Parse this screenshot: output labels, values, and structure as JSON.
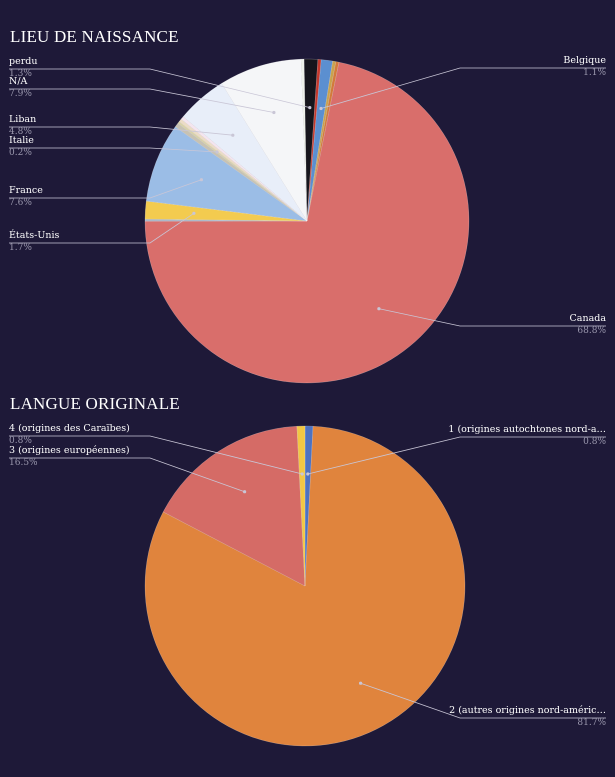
{
  "chart_data": [
    {
      "type": "pie",
      "title": "LIEU DE NAISSANCE",
      "slices": [
        {
          "label": "Belgique",
          "percent_label": "1.1%",
          "value": 1.1,
          "color": "#5b8fd0",
          "labeled": true
        },
        {
          "label": "",
          "percent_label": "",
          "value": 0.3,
          "color": "#c9a24d",
          "labeled": false
        },
        {
          "label": "",
          "percent_label": "",
          "value": 0.3,
          "color": "#d37a3a",
          "labeled": false
        },
        {
          "label": "Canada",
          "percent_label": "68.8%",
          "value": 68.8,
          "color": "#d96e6b",
          "labeled": true
        },
        {
          "label": "",
          "percent_label": "",
          "value": 0.2,
          "color": "#a9b7c9",
          "labeled": false
        },
        {
          "label": "États-Unis",
          "percent_label": "1.7%",
          "value": 1.7,
          "color": "#f3cb4f",
          "labeled": true
        },
        {
          "label": "France",
          "percent_label": "7.6%",
          "value": 7.6,
          "color": "#9bbde6",
          "labeled": true
        },
        {
          "label": "",
          "percent_label": "",
          "value": 0.4,
          "color": "#c7c2b3",
          "labeled": false
        },
        {
          "label": "Italie",
          "percent_label": "0.2%",
          "value": 0.2,
          "color": "#d9d2a8",
          "labeled": true
        },
        {
          "label": "",
          "percent_label": "",
          "value": 0.3,
          "color": "#ecdcc6",
          "labeled": false
        },
        {
          "label": "",
          "percent_label": "",
          "value": 0.3,
          "color": "#f4e5ef",
          "labeled": false
        },
        {
          "label": "Liban",
          "percent_label": "4.8%",
          "value": 4.8,
          "color": "#e8eef9",
          "labeled": true
        },
        {
          "label": "N/A",
          "percent_label": "7.9%",
          "value": 7.9,
          "color": "#f5f6f8",
          "labeled": true
        },
        {
          "label": "",
          "percent_label": "",
          "value": 0.3,
          "color": "#eef1ea",
          "labeled": false
        },
        {
          "label": "perdu",
          "percent_label": "1.3%",
          "value": 1.3,
          "color": "#16151c",
          "labeled": true
        },
        {
          "label": "",
          "percent_label": "",
          "value": 0.3,
          "color": "#c4382c",
          "labeled": false
        }
      ]
    },
    {
      "type": "pie",
      "title": "LANGUE ORIGINALE",
      "slices": [
        {
          "label": "1 (origines autochtones nord-a…",
          "percent_label": "0.8%",
          "value": 0.8,
          "color": "#4d72c1",
          "labeled": true
        },
        {
          "label": "2 (autres origines nord-améric…",
          "percent_label": "81.7%",
          "value": 81.7,
          "color": "#e0843d",
          "labeled": true
        },
        {
          "label": "3 (origines européennes)",
          "percent_label": "16.5%",
          "value": 16.5,
          "color": "#d56b66",
          "labeled": true
        },
        {
          "label": "4 (origines des Caraïbes)",
          "percent_label": "0.8%",
          "value": 0.8,
          "color": "#f2c744",
          "labeled": true
        }
      ]
    }
  ]
}
